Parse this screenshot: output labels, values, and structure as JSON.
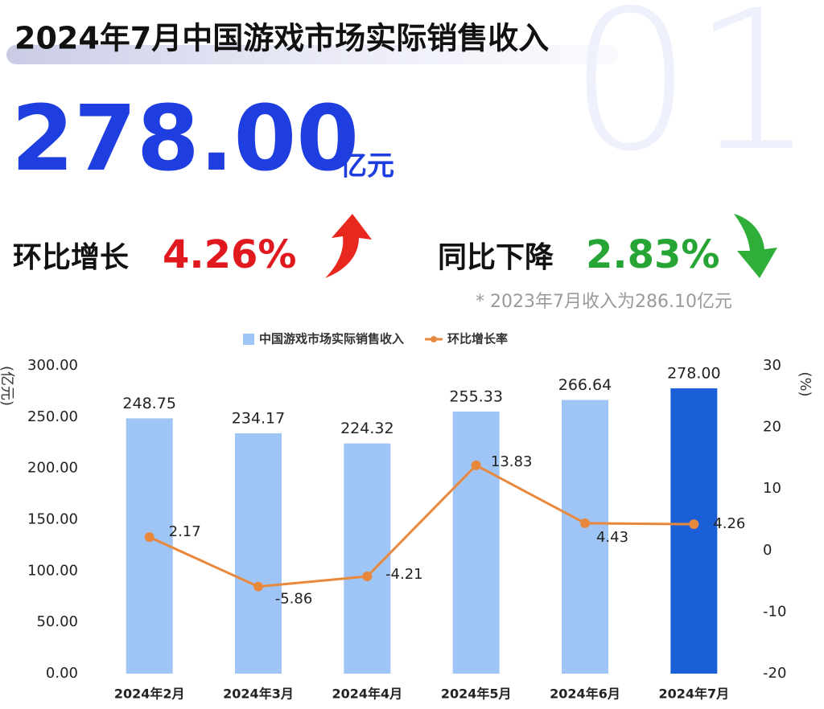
{
  "header": {
    "title": "2024年7月中国游戏市场实际销售收入",
    "value": "278.00",
    "unit": "亿元",
    "index": "01"
  },
  "mom": {
    "label": "环比增长",
    "value": "4.26%"
  },
  "yoy": {
    "label": "同比下降",
    "value": "2.83%"
  },
  "note": "* 2023年7月收入为286.10亿元",
  "chart_data": {
    "type": "bar",
    "y_label": "(亿元)",
    "y2_label": "(%)",
    "categories": [
      "2024年2月",
      "2024年3月",
      "2024年4月",
      "2024年5月",
      "2024年6月",
      "2024年7月"
    ],
    "series": [
      {
        "name": "中国游戏市场实际销售收入",
        "type": "bar",
        "color": "#9fc5f6",
        "colors": [
          "#9fc5f6",
          "#9fc5f6",
          "#9fc5f6",
          "#9fc5f6",
          "#9fc5f6",
          "#1a5fd8"
        ],
        "values": [
          248.75,
          234.17,
          224.32,
          255.33,
          266.64,
          278.0
        ],
        "value_labels": [
          "248.75",
          "234.17",
          "224.32",
          "255.33",
          "266.64",
          "278.00"
        ]
      },
      {
        "name": "环比增长率",
        "type": "line",
        "axis": "y2",
        "color": "#e8883c",
        "values": [
          2.17,
          -5.86,
          -4.21,
          13.83,
          4.43,
          4.26
        ]
      }
    ],
    "ylim": [
      0,
      300
    ],
    "yticks": [
      {
        "value": 0,
        "label": "0.00"
      },
      {
        "value": 50,
        "label": "50.00"
      },
      {
        "value": 100,
        "label": "100.00"
      },
      {
        "value": 150,
        "label": "150.00"
      },
      {
        "value": 200,
        "label": "200.00"
      },
      {
        "value": 250,
        "label": "250.00"
      },
      {
        "value": 300,
        "label": "300.00"
      }
    ],
    "y2lim": [
      -20,
      30
    ],
    "y2ticks": [
      -20,
      -10,
      0,
      10,
      20,
      30
    ],
    "grid": false,
    "legend": "top"
  }
}
